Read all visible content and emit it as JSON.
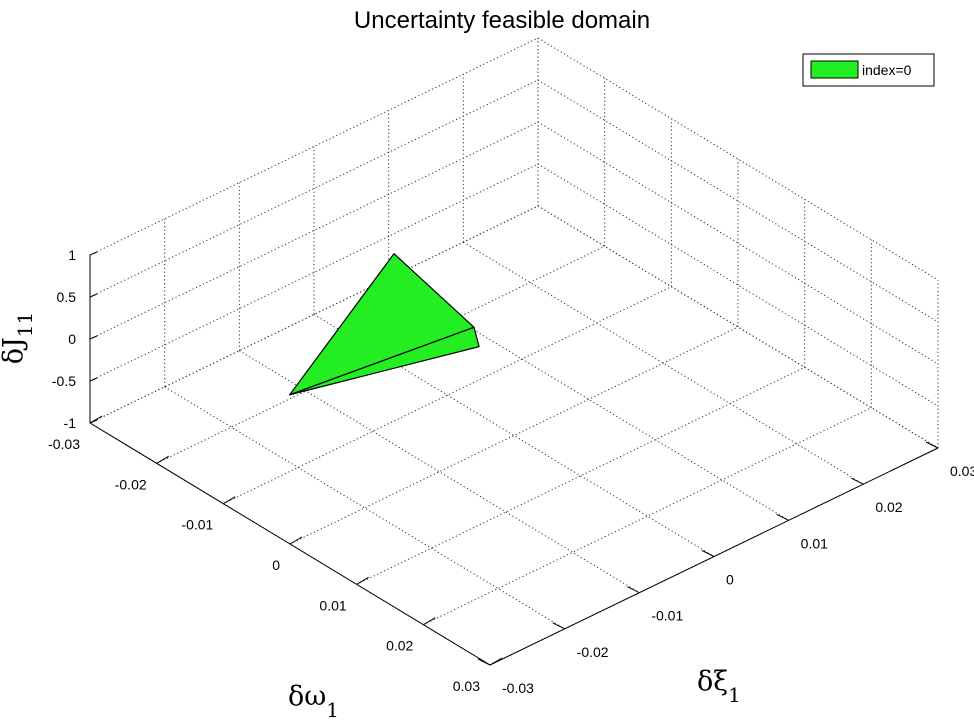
{
  "chart_data": {
    "type": "3d-patch",
    "title": "Uncertainty feasible domain",
    "xlabel": "δω",
    "xlabel_sub": "1",
    "ylabel": "δξ",
    "ylabel_sub": "1",
    "zlabel": "δJ",
    "zlabel_sub": "11",
    "xlim": [
      -0.03,
      0.03
    ],
    "ylim": [
      -0.03,
      0.03
    ],
    "zlim": [
      -1,
      1
    ],
    "x_ticks": [
      "-0.03",
      "-0.02",
      "-0.01",
      "0",
      "0.01",
      "0.02",
      "0.03"
    ],
    "y_ticks": [
      "-0.03",
      "-0.02",
      "-0.01",
      "0",
      "0.01",
      "0.02",
      "0.03"
    ],
    "z_ticks": [
      "-1",
      "-0.5",
      "0",
      "0.5",
      "1"
    ],
    "grid": true,
    "legend": {
      "placement": "top-right",
      "entries": [
        {
          "label": "index=0",
          "color": "#22ee22"
        }
      ]
    },
    "series": [
      {
        "name": "index=0",
        "color": "#22ee22",
        "edge_color": "#000000",
        "vertices": [
          {
            "x": -0.009,
            "y": -0.022,
            "z": 0.0
          },
          {
            "x": -0.018,
            "y": 0.0,
            "z": 0.3
          },
          {
            "x": -0.006,
            "y": 0.0,
            "z": 0.0
          },
          {
            "x": -0.003,
            "y": -0.002,
            "z": 0.0
          }
        ],
        "faces": [
          [
            0,
            1,
            2
          ],
          [
            0,
            2,
            3
          ]
        ]
      }
    ]
  }
}
